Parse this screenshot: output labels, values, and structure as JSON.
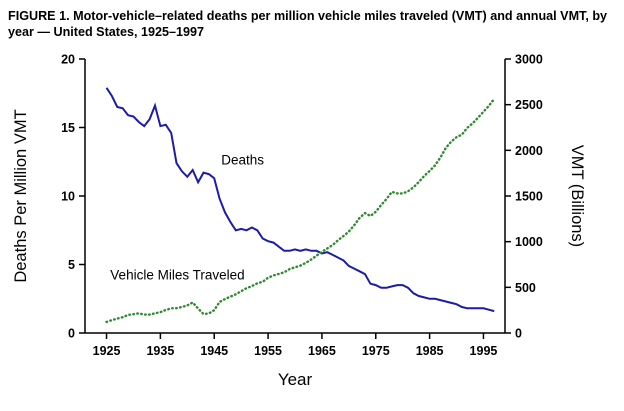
{
  "chart_data": {
    "type": "line",
    "title": "FIGURE 1. Motor-vehicle–related deaths per million vehicle miles traveled (VMT) and annual VMT, by year — United States, 1925–1997",
    "xlabel": "Year",
    "ylabel_left": "Deaths Per Million VMT",
    "ylabel_right": "VMT (Billions)",
    "x_range": [
      1921,
      1999
    ],
    "y_left_range": [
      0,
      20
    ],
    "y_right_range": [
      0,
      3000
    ],
    "x_ticks": [
      1925,
      1935,
      1945,
      1955,
      1965,
      1975,
      1985,
      1995
    ],
    "y_left_ticks": [
      0,
      5,
      10,
      15,
      20
    ],
    "y_right_ticks": [
      0,
      500,
      1000,
      1500,
      2000,
      2500,
      3000
    ],
    "grid": false,
    "legend": "in-plot text labels",
    "years": [
      1925,
      1926,
      1927,
      1928,
      1929,
      1930,
      1931,
      1932,
      1933,
      1934,
      1935,
      1936,
      1937,
      1938,
      1939,
      1940,
      1941,
      1942,
      1943,
      1944,
      1945,
      1946,
      1947,
      1948,
      1949,
      1950,
      1951,
      1952,
      1953,
      1954,
      1955,
      1956,
      1957,
      1958,
      1959,
      1960,
      1961,
      1962,
      1963,
      1964,
      1965,
      1966,
      1967,
      1968,
      1969,
      1970,
      1971,
      1972,
      1973,
      1974,
      1975,
      1976,
      1977,
      1978,
      1979,
      1980,
      1981,
      1982,
      1983,
      1984,
      1985,
      1986,
      1987,
      1988,
      1989,
      1990,
      1991,
      1992,
      1993,
      1994,
      1995,
      1996,
      1997
    ],
    "series": [
      {
        "name": "Deaths",
        "axis": "left",
        "color": "#1c1ca8",
        "style": "solid",
        "values": [
          17.9,
          17.3,
          16.5,
          16.4,
          15.9,
          15.8,
          15.4,
          15.1,
          15.6,
          16.6,
          15.1,
          15.2,
          14.6,
          12.4,
          11.8,
          11.4,
          11.9,
          11.0,
          11.7,
          11.6,
          11.3,
          9.8,
          8.8,
          8.1,
          7.5,
          7.6,
          7.5,
          7.7,
          7.5,
          6.9,
          6.7,
          6.6,
          6.3,
          6.0,
          6.0,
          6.1,
          6.0,
          6.1,
          6.0,
          6.0,
          5.8,
          5.9,
          5.7,
          5.5,
          5.3,
          4.9,
          4.7,
          4.5,
          4.3,
          3.6,
          3.5,
          3.3,
          3.3,
          3.4,
          3.5,
          3.5,
          3.3,
          2.9,
          2.7,
          2.6,
          2.5,
          2.5,
          2.4,
          2.3,
          2.2,
          2.1,
          1.9,
          1.8,
          1.8,
          1.8,
          1.8,
          1.7,
          1.6
        ]
      },
      {
        "name": "Vehicle Miles Traveled",
        "axis": "right",
        "color": "#2e8b2e",
        "style": "dotted",
        "values": [
          122,
          141,
          158,
          173,
          198,
          206,
          216,
          201,
          201,
          216,
          229,
          252,
          270,
          271,
          285,
          302,
          334,
          268,
          208,
          213,
          250,
          341,
          371,
          398,
          424,
          458,
          491,
          514,
          544,
          561,
          606,
          631,
          647,
          665,
          700,
          719,
          738,
          767,
          805,
          846,
          888,
          926,
          964,
          1016,
          1062,
          1110,
          1179,
          1260,
          1313,
          1281,
          1328,
          1402,
          1467,
          1545,
          1529,
          1527,
          1553,
          1595,
          1653,
          1720,
          1774,
          1835,
          1921,
          2026,
          2096,
          2144,
          2172,
          2247,
          2296,
          2358,
          2423,
          2486,
          2562
        ]
      }
    ],
    "annotations": [
      {
        "text": "Deaths",
        "year": 1946.3,
        "value": 12.3
      },
      {
        "text": "Vehicle Miles Traveled",
        "year": 1925.7,
        "value": 3.9
      }
    ]
  }
}
